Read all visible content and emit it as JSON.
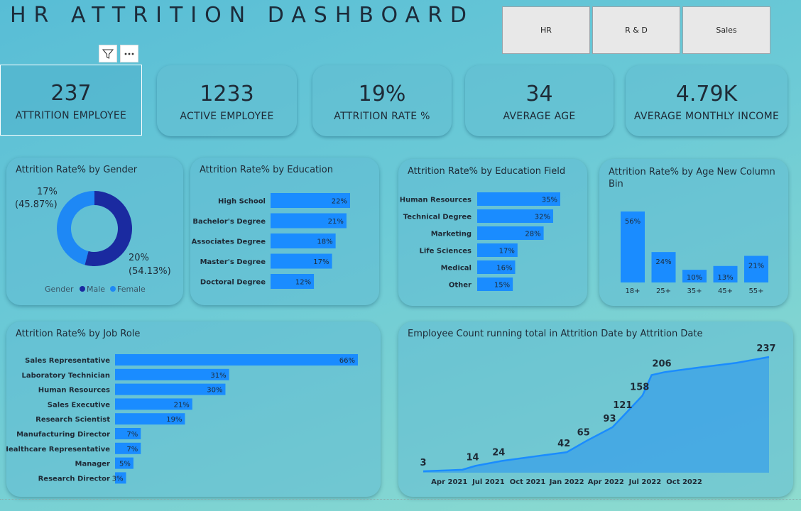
{
  "title": "HR ATTRITION DASHBOARD",
  "slicer": [
    "HR",
    "R & D",
    "Sales"
  ],
  "tools": {
    "filter_icon": "filter-icon",
    "more_icon": "more-options-icon"
  },
  "kpis": [
    {
      "value": "237",
      "label": "ATTRITION EMPLOYEE"
    },
    {
      "value": "1233",
      "label": "ACTIVE EMPLOYEE"
    },
    {
      "value": "19%",
      "label": "ATTRITION RATE %"
    },
    {
      "value": "34",
      "label": "AVERAGE AGE"
    },
    {
      "value": "4.79K",
      "label": "AVERAGE MONTHLY INCOME"
    }
  ],
  "gender": {
    "title": "Attrition Rate% by Gender",
    "legend_title": "Gender",
    "slices": [
      {
        "name": "Male",
        "rate": "20%",
        "share": "(54.13%)",
        "value": 54.13,
        "color": "#1a2aa0"
      },
      {
        "name": "Female",
        "rate": "17%",
        "share": "(45.87%)",
        "value": 45.87,
        "color": "#1e88f5"
      }
    ]
  },
  "education": {
    "title": "Attrition Rate% by Education",
    "categories": [
      "High School",
      "Bachelor's Degree",
      "Associates Degree",
      "Master's Degree",
      "Doctoral Degree"
    ],
    "values": [
      22,
      21,
      18,
      17,
      12
    ],
    "labels": [
      "22%",
      "21%",
      "18%",
      "17%",
      "12%"
    ]
  },
  "education_field": {
    "title": "Attrition Rate% by Education Field",
    "categories": [
      "Human Resources",
      "Technical Degree",
      "Marketing",
      "Life Sciences",
      "Medical",
      "Other"
    ],
    "values": [
      35,
      32,
      28,
      17,
      16,
      15
    ],
    "labels": [
      "35%",
      "32%",
      "28%",
      "17%",
      "16%",
      "15%"
    ]
  },
  "age": {
    "title": "Attrition Rate% by Age New Column Bin",
    "categories": [
      "18+",
      "25+",
      "35+",
      "45+",
      "55+"
    ],
    "values": [
      56,
      24,
      10,
      13,
      21
    ],
    "labels": [
      "56%",
      "24%",
      "10%",
      "13%",
      "21%"
    ]
  },
  "job_role": {
    "title": "Attrition Rate% by Job Role",
    "categories": [
      "Sales Representative",
      "Laboratory Technician",
      "Human Resources",
      "Sales Executive",
      "Research Scientist",
      "Manufacturing Director",
      "Healthcare Representative",
      "Manager",
      "Research Director"
    ],
    "values": [
      66,
      31,
      30,
      21,
      19,
      7,
      7,
      5,
      3
    ],
    "labels": [
      "66%",
      "31%",
      "30%",
      "21%",
      "19%",
      "7%",
      "7%",
      "5%",
      "3%"
    ]
  },
  "running_total": {
    "title": "Employee Count running total in Attrition Date by Attrition Date",
    "x_ticks": [
      "Apr 2021",
      "Jul 2021",
      "Oct 2021",
      "Jan 2022",
      "Apr 2022",
      "Jul 2022",
      "Oct 2022"
    ],
    "points": [
      {
        "month": 0,
        "value": 3,
        "label": "3"
      },
      {
        "month": 3,
        "value": 6
      },
      {
        "month": 4,
        "value": 14,
        "label": "14"
      },
      {
        "month": 6,
        "value": 24,
        "label": "24"
      },
      {
        "month": 9,
        "value": 35
      },
      {
        "month": 11,
        "value": 42,
        "label": "42"
      },
      {
        "month": 12.5,
        "value": 65,
        "label": "65"
      },
      {
        "month": 14.5,
        "value": 93,
        "label": "93"
      },
      {
        "month": 15.5,
        "value": 121,
        "label": "121"
      },
      {
        "month": 16.8,
        "value": 158,
        "label": "158"
      },
      {
        "month": 17.5,
        "value": 200
      },
      {
        "month": 18.5,
        "value": 206,
        "label": "206"
      },
      {
        "month": 21,
        "value": 215
      },
      {
        "month": 24,
        "value": 225
      },
      {
        "month": 26.5,
        "value": 237,
        "label": "237"
      }
    ]
  }
}
